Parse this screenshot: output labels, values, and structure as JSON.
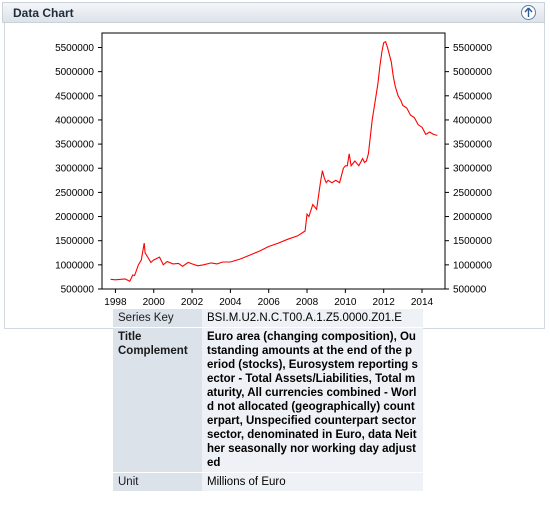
{
  "panel": {
    "title": "Data Chart",
    "collapse_icon": "arrow-up-circle-icon"
  },
  "chart_data": {
    "type": "line",
    "title": "",
    "xlabel": "",
    "ylabel": "",
    "ylim": [
      500000,
      5800000
    ],
    "xlim": [
      1997.3,
      2015.2
    ],
    "yticks": [
      500000,
      1000000,
      1500000,
      2000000,
      2500000,
      3000000,
      3500000,
      4000000,
      4500000,
      5000000,
      5500000
    ],
    "xticks": [
      1998,
      2000,
      2002,
      2004,
      2006,
      2008,
      2010,
      2012,
      2014
    ],
    "grid": false,
    "right_axis": true,
    "line_color": "#ff0000",
    "series": [
      {
        "x": [
          1997.75,
          1998.0,
          1998.5,
          1998.75,
          1998.9,
          1999.0,
          1999.2,
          1999.35,
          1999.5,
          1999.55,
          1999.7,
          1999.85,
          2000.0,
          2000.3,
          2000.5,
          2000.7,
          2001.0,
          2001.3,
          2001.5,
          2001.8,
          2002.0,
          2002.3,
          2002.6,
          2003.0,
          2003.3,
          2003.6,
          2004.0,
          2004.5,
          2005.0,
          2005.5,
          2006.0,
          2006.5,
          2007.0,
          2007.5,
          2007.9,
          2008.0,
          2008.1,
          2008.3,
          2008.5,
          2008.7,
          2008.8,
          2008.9,
          2009.0,
          2009.1,
          2009.3,
          2009.5,
          2009.7,
          2009.9,
          2010.0,
          2010.1,
          2010.2,
          2010.3,
          2010.4,
          2010.5,
          2010.7,
          2010.9,
          2011.0,
          2011.1,
          2011.2,
          2011.4,
          2011.6,
          2011.7,
          2011.8,
          2011.9,
          2012.0,
          2012.1,
          2012.2,
          2012.4,
          2012.5,
          2012.6,
          2012.75,
          2012.9,
          2013.0,
          2013.2,
          2013.4,
          2013.6,
          2013.8,
          2014.0,
          2014.2,
          2014.4,
          2014.6,
          2014.8
        ],
        "values": [
          700000,
          690000,
          710000,
          660000,
          790000,
          780000,
          1000000,
          1100000,
          1450000,
          1250000,
          1150000,
          1050000,
          1100000,
          1160000,
          1000000,
          1070000,
          1020000,
          1030000,
          970000,
          1050000,
          1020000,
          980000,
          1000000,
          1040000,
          1020000,
          1060000,
          1060000,
          1120000,
          1200000,
          1280000,
          1380000,
          1450000,
          1530000,
          1600000,
          1700000,
          2050000,
          2000000,
          2250000,
          2150000,
          2700000,
          2950000,
          2800000,
          2700000,
          2750000,
          2700000,
          2750000,
          2700000,
          3000000,
          3050000,
          3050000,
          3300000,
          3050000,
          3100000,
          3150000,
          3050000,
          3200000,
          3120000,
          3150000,
          3300000,
          4000000,
          4500000,
          4750000,
          5100000,
          5400000,
          5600000,
          5620000,
          5500000,
          5200000,
          4900000,
          4700000,
          4500000,
          4400000,
          4300000,
          4250000,
          4100000,
          4050000,
          3900000,
          3850000,
          3700000,
          3750000,
          3700000,
          3680000
        ]
      }
    ]
  },
  "table": {
    "rows": [
      {
        "key": "Series Key",
        "value": "BSI.M.U2.N.C.T00.A.1.Z5.0000.Z01.E",
        "bold": false
      },
      {
        "key": "Title Complement",
        "value": "Euro area (changing composition), Outstanding amounts at the end of the period (stocks), Eurosystem reporting sector - Total Assets/Liabilities, Total maturity, All currencies combined - World not allocated (geographically) counterpart, Unspecified counterpart sector sector, denominated in Euro, data Neither seasonally nor working day adjusted",
        "bold": true
      },
      {
        "key": "Unit",
        "value": "Millions of Euro",
        "bold": false
      }
    ]
  }
}
